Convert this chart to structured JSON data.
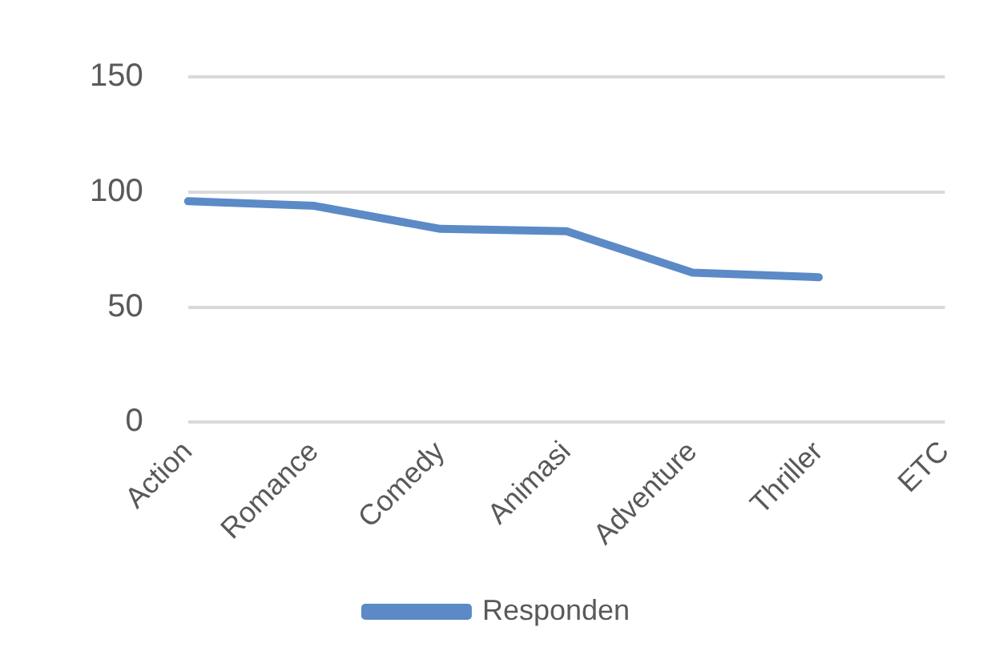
{
  "chart_data": {
    "type": "line",
    "categories": [
      "Action",
      "Romance",
      "Comedy",
      "Animasi",
      "Adventure",
      "Thriller",
      "ETC"
    ],
    "series": [
      {
        "name": "Responden",
        "color": "#5b8ac6",
        "values": [
          96,
          94,
          84,
          83,
          65,
          63,
          null
        ]
      }
    ],
    "ylim": [
      0,
      150
    ],
    "yticks": [
      0,
      50,
      100,
      150
    ],
    "grid": "y",
    "legend": "bottom",
    "marker": "none",
    "line_style": "solid"
  }
}
